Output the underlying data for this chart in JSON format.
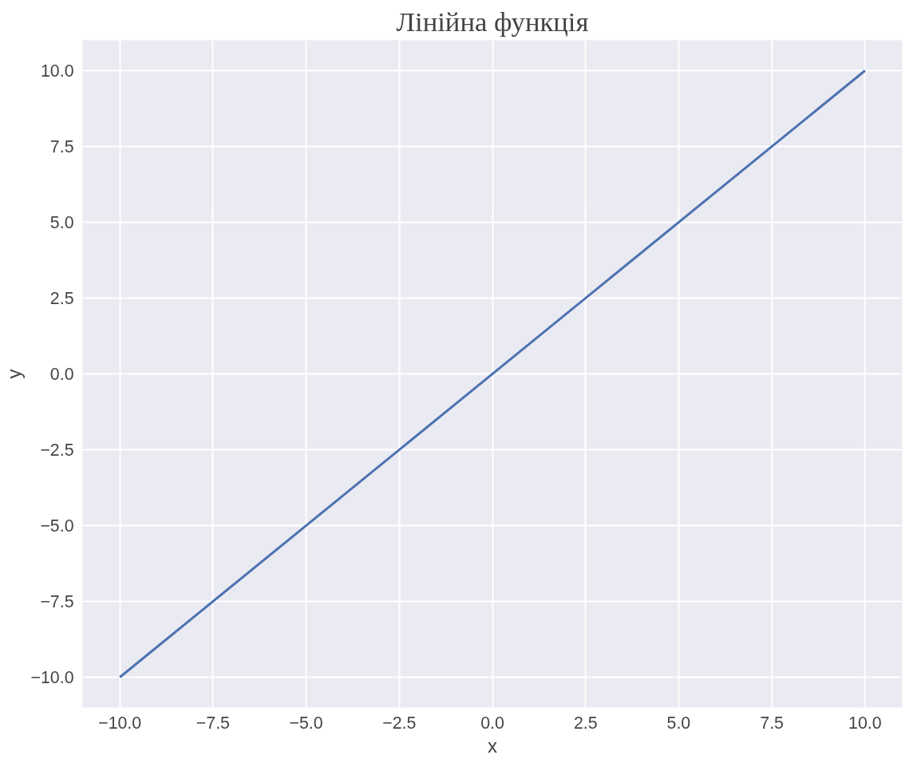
{
  "chart_data": {
    "type": "line",
    "title": "Лінійна функція",
    "xlabel": "x",
    "ylabel": "y",
    "x": [
      -10,
      10
    ],
    "series": [
      {
        "color": "#4c72b0",
        "values": [
          -10,
          10
        ]
      }
    ],
    "xlim": [
      -11,
      11
    ],
    "ylim": [
      -11,
      11
    ],
    "xticks": [
      {
        "value": -10,
        "label": "−10.0"
      },
      {
        "value": -7.5,
        "label": "−7.5"
      },
      {
        "value": -5,
        "label": "−5.0"
      },
      {
        "value": -2.5,
        "label": "−2.5"
      },
      {
        "value": 0,
        "label": "0.0"
      },
      {
        "value": 2.5,
        "label": "2.5"
      },
      {
        "value": 5,
        "label": "5.0"
      },
      {
        "value": 7.5,
        "label": "7.5"
      },
      {
        "value": 10,
        "label": "10.0"
      }
    ],
    "yticks": [
      {
        "value": -10,
        "label": "−10.0"
      },
      {
        "value": -7.5,
        "label": "−7.5"
      },
      {
        "value": -5,
        "label": "−5.0"
      },
      {
        "value": -2.5,
        "label": "−2.5"
      },
      {
        "value": 0,
        "label": "0.0"
      },
      {
        "value": 2.5,
        "label": "2.5"
      },
      {
        "value": 5,
        "label": "5.0"
      },
      {
        "value": 7.5,
        "label": "7.5"
      },
      {
        "value": 10,
        "label": "10.0"
      }
    ],
    "grid": true,
    "line_style": "solid"
  }
}
